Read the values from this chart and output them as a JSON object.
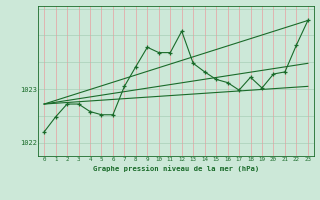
{
  "title": "Graphe pression niveau de la mer (hPa)",
  "bg_color": "#cce8d8",
  "plot_bg_color": "#cce8d8",
  "line_color": "#1a6b2a",
  "vgrid_color": "#e8a0a0",
  "hgrid_color": "#a0c8b0",
  "xlim": [
    -0.5,
    23.5
  ],
  "ylim": [
    1021.75,
    1024.55
  ],
  "yticks": [
    1022,
    1023
  ],
  "xticks": [
    0,
    1,
    2,
    3,
    4,
    5,
    6,
    7,
    8,
    9,
    10,
    11,
    12,
    13,
    14,
    15,
    16,
    17,
    18,
    19,
    20,
    21,
    22,
    23
  ],
  "main_series": [
    [
      0,
      1022.2
    ],
    [
      1,
      1022.48
    ],
    [
      2,
      1022.72
    ],
    [
      3,
      1022.72
    ],
    [
      4,
      1022.58
    ],
    [
      5,
      1022.52
    ],
    [
      6,
      1022.52
    ],
    [
      7,
      1023.05
    ],
    [
      8,
      1023.42
    ],
    [
      9,
      1023.78
    ],
    [
      10,
      1023.68
    ],
    [
      11,
      1023.68
    ],
    [
      12,
      1024.08
    ],
    [
      13,
      1023.48
    ],
    [
      14,
      1023.32
    ],
    [
      15,
      1023.18
    ],
    [
      16,
      1023.12
    ],
    [
      17,
      1022.98
    ],
    [
      18,
      1023.22
    ],
    [
      19,
      1023.02
    ],
    [
      20,
      1023.28
    ],
    [
      21,
      1023.32
    ],
    [
      22,
      1023.82
    ],
    [
      23,
      1024.28
    ]
  ],
  "trend_line1": [
    [
      0,
      1022.72
    ],
    [
      23,
      1024.28
    ]
  ],
  "trend_line2": [
    [
      0,
      1022.72
    ],
    [
      23,
      1023.05
    ]
  ],
  "trend_line3": [
    [
      0,
      1022.72
    ],
    [
      23,
      1023.48
    ]
  ]
}
